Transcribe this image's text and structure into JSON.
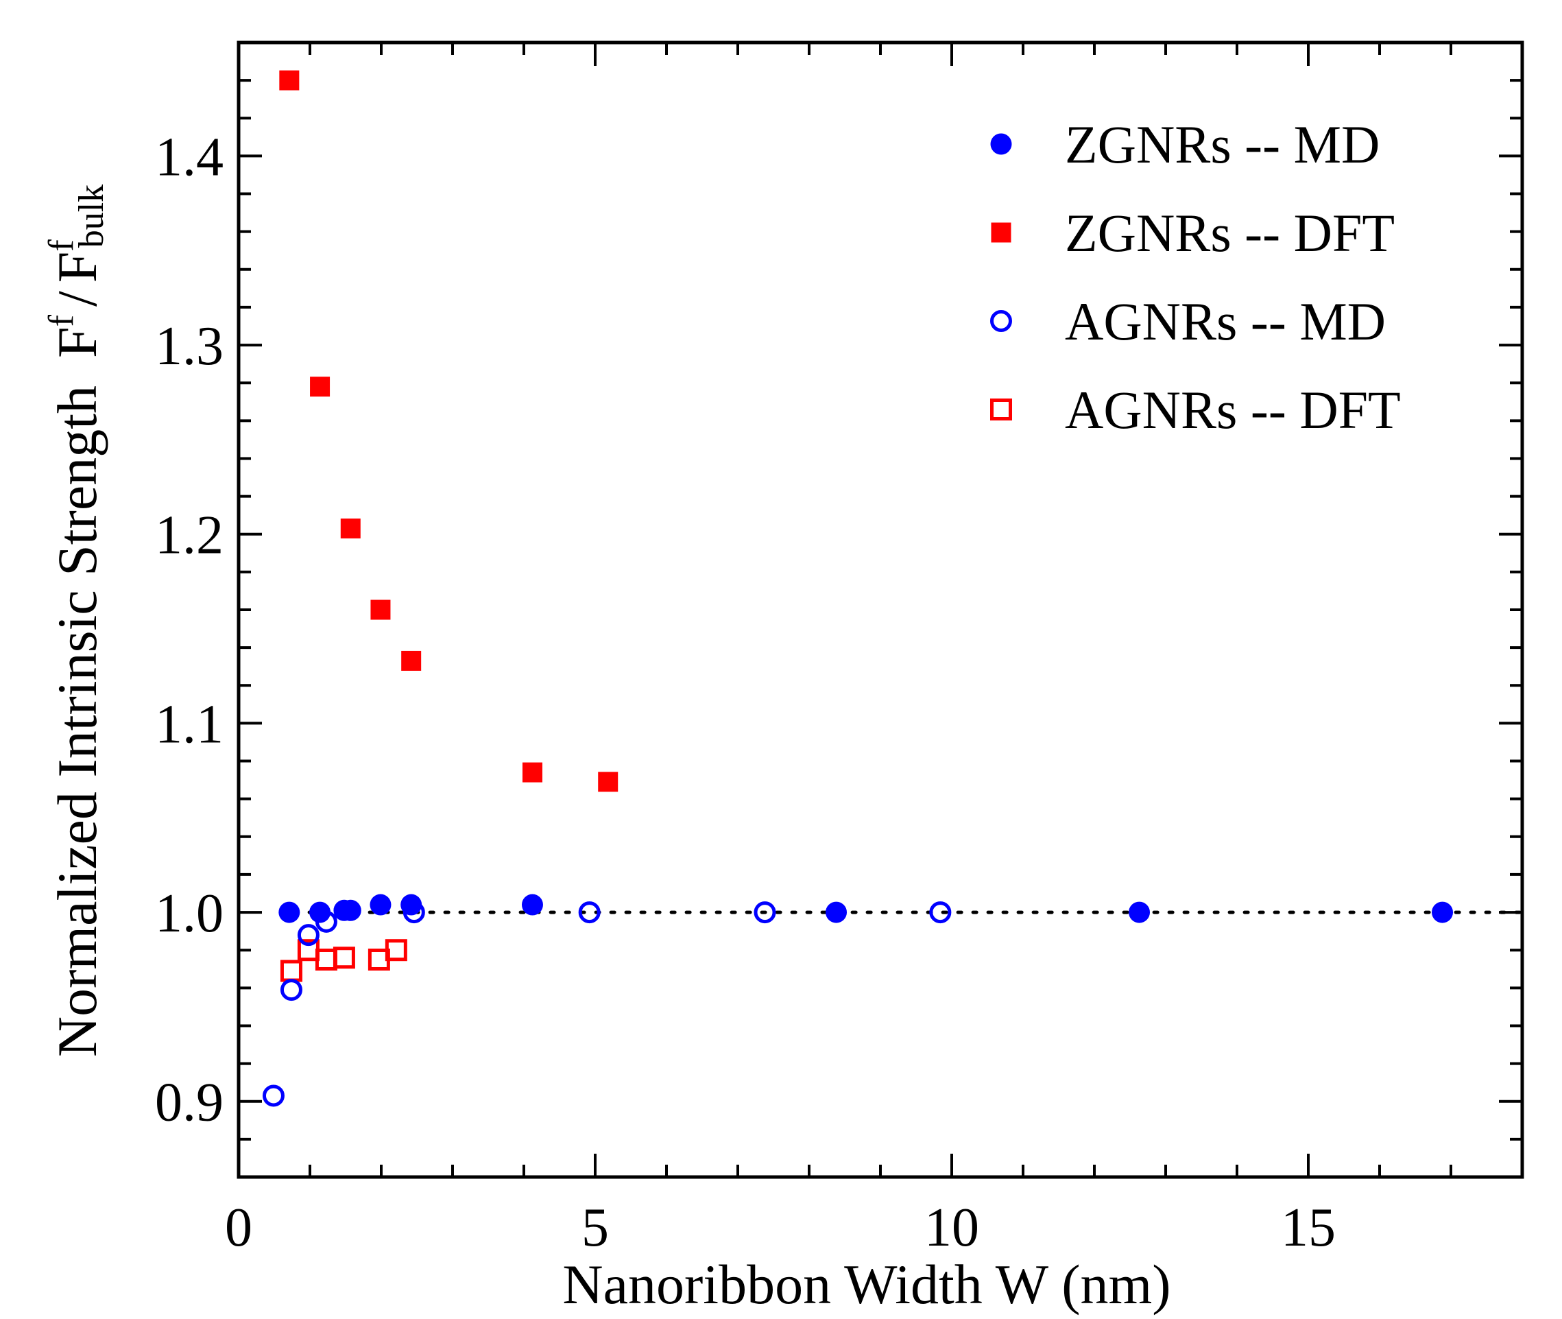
{
  "chart_data": {
    "type": "scatter",
    "title": "",
    "xlabel": "Nanoribbon Width  W (nm)",
    "ylabel": {
      "main": "Normalized Intrinsic Strength",
      "F": "F",
      "sup": "f",
      "slash": "/",
      "sub": "bulk"
    },
    "xlim": [
      0,
      18
    ],
    "ylim": [
      0.86,
      1.46
    ],
    "xticks": [
      0,
      5,
      10,
      15
    ],
    "xtick_labels": [
      "0",
      "5",
      "10",
      "15"
    ],
    "yticks": [
      0.9,
      1.0,
      1.1,
      1.2,
      1.3,
      1.4
    ],
    "ytick_labels": [
      "0.9",
      "1.0",
      "1.1",
      "1.2",
      "1.3",
      "1.4"
    ],
    "legend_position": "top-right",
    "reference_line": {
      "y": 1.0,
      "style": "dotted",
      "color": "#000000"
    },
    "series": [
      {
        "name": "ZGNRs -- MD",
        "marker": "circle",
        "filled": true,
        "color": "#0000ff",
        "x": [
          0.71,
          1.14,
          1.48,
          1.57,
          1.99,
          2.42,
          4.12,
          8.38,
          12.63,
          16.88
        ],
        "y": [
          1.0,
          1.0,
          1.001,
          1.001,
          1.004,
          1.004,
          1.004,
          1.0,
          1.0,
          1.0
        ]
      },
      {
        "name": "ZGNRs -- DFT",
        "marker": "square",
        "filled": true,
        "color": "#ff0000",
        "x": [
          0.71,
          1.14,
          1.57,
          1.99,
          2.42,
          4.12,
          5.18
        ],
        "y": [
          1.44,
          1.278,
          1.203,
          1.16,
          1.133,
          1.074,
          1.069
        ]
      },
      {
        "name": "AGNRs -- MD",
        "marker": "circle",
        "filled": false,
        "color": "#0000ff",
        "x": [
          0.49,
          0.74,
          0.98,
          1.23,
          2.46,
          4.92,
          7.38,
          9.84
        ],
        "y": [
          0.903,
          0.959,
          0.988,
          0.995,
          1.0,
          1.0,
          1.0,
          1.0
        ]
      },
      {
        "name": "AGNRs -- DFT",
        "marker": "square",
        "filled": false,
        "color": "#ff0000",
        "x": [
          0.74,
          0.98,
          1.23,
          1.48,
          1.97,
          2.21
        ],
        "y": [
          0.969,
          0.98,
          0.975,
          0.976,
          0.975,
          0.98
        ]
      }
    ]
  }
}
